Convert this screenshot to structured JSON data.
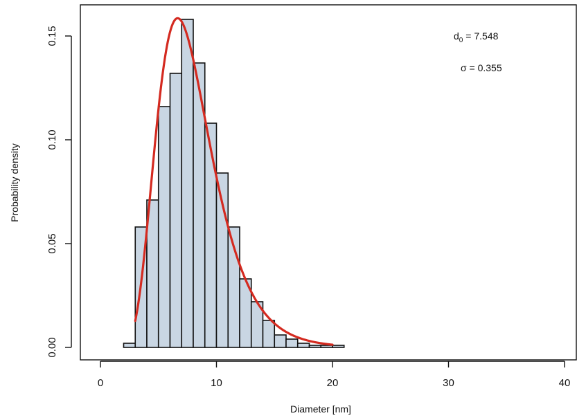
{
  "chart_data": {
    "type": "bar",
    "xlabel": "Diameter [nm]",
    "ylabel": "Probability density",
    "xlim": [
      0,
      40
    ],
    "ylim": [
      0,
      0.16
    ],
    "x_ticks": [
      "0",
      "10",
      "20",
      "30",
      "40"
    ],
    "y_ticks": [
      "0.00",
      "0.05",
      "0.10",
      "0.15"
    ],
    "grid": false,
    "bar_color": "#c9d6e3",
    "bar_edge_color": "#111111",
    "curve_color": "#d42a20",
    "bin_width": 1,
    "bins": [
      {
        "x0": 2,
        "x1": 3,
        "density": 0.002
      },
      {
        "x0": 3,
        "x1": 4,
        "density": 0.058
      },
      {
        "x0": 4,
        "x1": 5,
        "density": 0.071
      },
      {
        "x0": 5,
        "x1": 6,
        "density": 0.116
      },
      {
        "x0": 6,
        "x1": 7,
        "density": 0.132
      },
      {
        "x0": 7,
        "x1": 8,
        "density": 0.158
      },
      {
        "x0": 8,
        "x1": 9,
        "density": 0.137
      },
      {
        "x0": 9,
        "x1": 10,
        "density": 0.108
      },
      {
        "x0": 10,
        "x1": 11,
        "density": 0.084
      },
      {
        "x0": 11,
        "x1": 12,
        "density": 0.058
      },
      {
        "x0": 12,
        "x1": 13,
        "density": 0.033
      },
      {
        "x0": 13,
        "x1": 14,
        "density": 0.022
      },
      {
        "x0": 14,
        "x1": 15,
        "density": 0.013
      },
      {
        "x0": 15,
        "x1": 16,
        "density": 0.006
      },
      {
        "x0": 16,
        "x1": 17,
        "density": 0.004
      },
      {
        "x0": 17,
        "x1": 18,
        "density": 0.002
      },
      {
        "x0": 18,
        "x1": 19,
        "density": 0.001
      },
      {
        "x0": 19,
        "x1": 20,
        "density": 0.001
      },
      {
        "x0": 20,
        "x1": 21,
        "density": 0.001
      }
    ],
    "fit_curve": {
      "type": "lognormal",
      "x_range": [
        3,
        20
      ],
      "d0": 7.548,
      "sigma": 0.355
    },
    "annotations": {
      "d0_prefix": "d",
      "d0_subscript": "0",
      "d0_rest": " = 7.548",
      "sigma_text": "σ = 0.355"
    }
  }
}
